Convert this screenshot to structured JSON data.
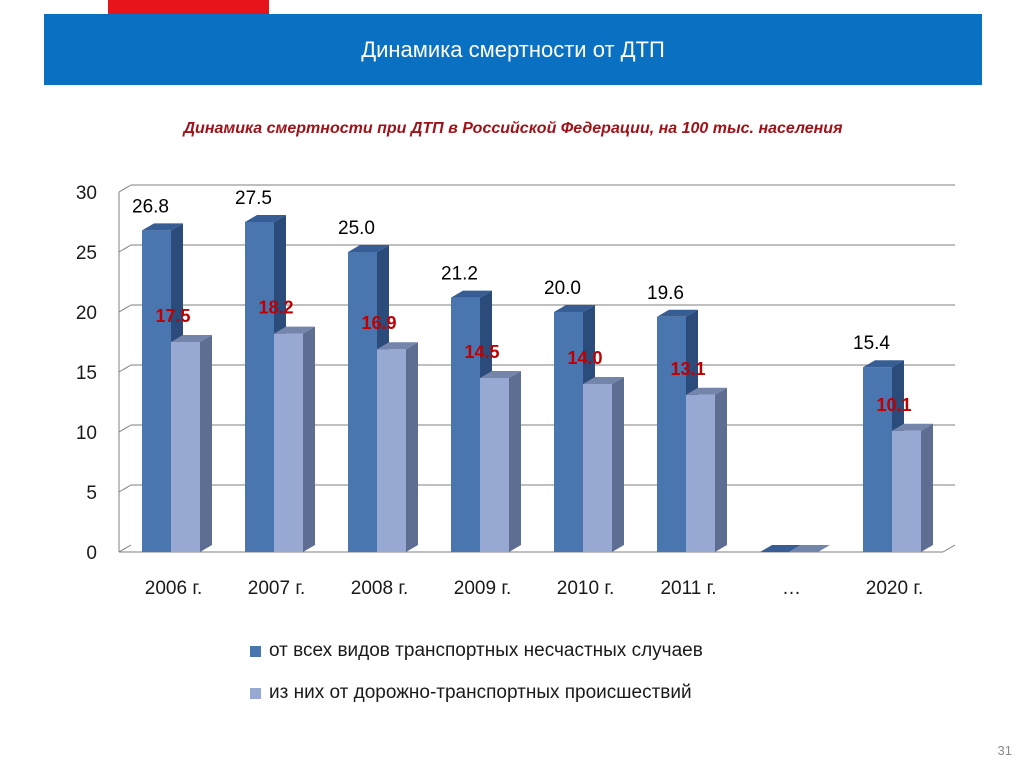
{
  "header": {
    "title": "Динамика смертности от ДТП"
  },
  "chart_data": {
    "type": "bar",
    "title": "Динамика смертности при ДТП в Российской Федерации, на 100 тыс. населения",
    "categories": [
      "2006 г.",
      "2007 г.",
      "2008 г.",
      "2009 г.",
      "2010 г.",
      "2011 г.",
      "…",
      "2020 г."
    ],
    "ylim": [
      0,
      30
    ],
    "yticks": [
      0,
      5,
      10,
      15,
      20,
      25,
      30
    ],
    "grid": true,
    "legend_position": "bottom",
    "series": [
      {
        "name": "от всех видов транспортных несчастных случаев",
        "values": [
          26.8,
          27.5,
          25.0,
          21.2,
          20.0,
          19.6,
          0,
          15.4
        ],
        "labels": [
          "26.8",
          "27.5",
          "25.0",
          "21.2",
          "20.0",
          "19.6",
          "",
          "15.4"
        ],
        "color": "#4a76b0",
        "side_color": "#2b4b7a",
        "top_color": "#365e95",
        "label_color": "#000000"
      },
      {
        "name": "из них от дорожно-транспортных происшествий",
        "values": [
          17.5,
          18.2,
          16.9,
          14.5,
          14.0,
          13.1,
          0,
          10.1
        ],
        "labels": [
          "17.5",
          "18.2",
          "16.9",
          "14.5",
          "14.0",
          "13.1",
          "",
          "10.1"
        ],
        "color": "#97a9d2",
        "side_color": "#5d6e92",
        "top_color": "#7485ab",
        "label_color": "#c00000"
      }
    ]
  },
  "footer": {
    "page_number": "31"
  }
}
